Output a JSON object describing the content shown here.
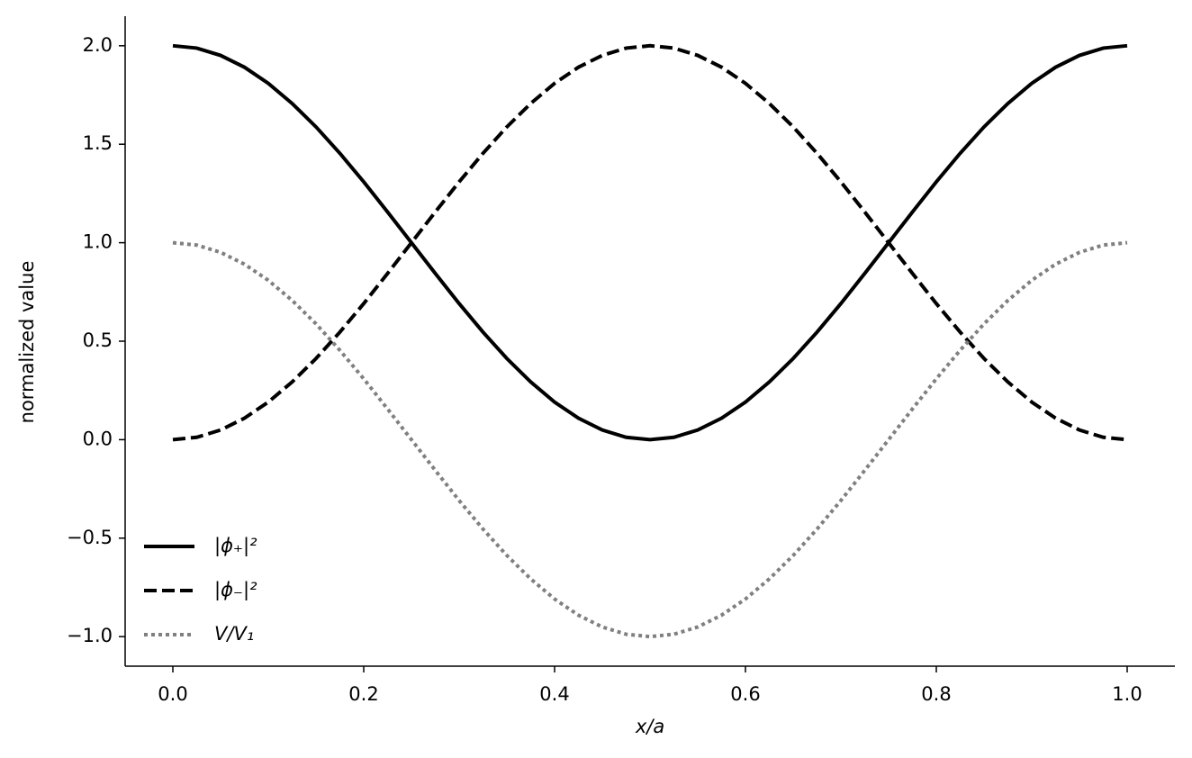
{
  "chart_data": {
    "type": "line",
    "xlabel": "x/a",
    "ylabel": "normalized value",
    "x": [
      0,
      0.025,
      0.05,
      0.075,
      0.1,
      0.125,
      0.15,
      0.175,
      0.2,
      0.225,
      0.25,
      0.275,
      0.3,
      0.325,
      0.35,
      0.375,
      0.4,
      0.425,
      0.45,
      0.475,
      0.5,
      0.525,
      0.55,
      0.575,
      0.6,
      0.625,
      0.65,
      0.675,
      0.7,
      0.725,
      0.75,
      0.775,
      0.8,
      0.825,
      0.85,
      0.875,
      0.9,
      0.925,
      0.95,
      0.975,
      1
    ],
    "series": [
      {
        "name": "|ϕ₊|²",
        "color": "#000000",
        "linestyle": "solid",
        "values": [
          2,
          1.988,
          1.951,
          1.891,
          1.809,
          1.707,
          1.588,
          1.454,
          1.309,
          1.156,
          1,
          0.844,
          0.691,
          0.546,
          0.412,
          0.293,
          0.191,
          0.109,
          0.049,
          0.012,
          0,
          0.012,
          0.049,
          0.109,
          0.191,
          0.293,
          0.412,
          0.546,
          0.691,
          0.844,
          1,
          1.156,
          1.309,
          1.454,
          1.588,
          1.707,
          1.809,
          1.891,
          1.951,
          1.988,
          2
        ]
      },
      {
        "name": "|ϕ₋|²",
        "color": "#000000",
        "linestyle": "dashed",
        "values": [
          0,
          0.012,
          0.049,
          0.109,
          0.191,
          0.293,
          0.412,
          0.546,
          0.691,
          0.844,
          1,
          1.156,
          1.309,
          1.454,
          1.588,
          1.707,
          1.809,
          1.891,
          1.951,
          1.988,
          2,
          1.988,
          1.951,
          1.891,
          1.809,
          1.707,
          1.588,
          1.454,
          1.309,
          1.156,
          1,
          0.844,
          0.691,
          0.546,
          0.412,
          0.293,
          0.191,
          0.109,
          0.049,
          0.012,
          0
        ]
      },
      {
        "name": "V/V₁",
        "color": "#808080",
        "linestyle": "dotted",
        "values": [
          1,
          0.988,
          0.951,
          0.891,
          0.809,
          0.707,
          0.588,
          0.454,
          0.309,
          0.156,
          0,
          -0.156,
          -0.309,
          -0.454,
          -0.588,
          -0.707,
          -0.809,
          -0.891,
          -0.951,
          -0.988,
          -1,
          -0.988,
          -0.951,
          -0.891,
          -0.809,
          -0.707,
          -0.588,
          -0.454,
          -0.309,
          -0.156,
          0,
          0.156,
          0.309,
          0.454,
          0.588,
          0.707,
          0.809,
          0.891,
          0.951,
          0.988,
          1
        ]
      }
    ],
    "xlim": [
      -0.05,
      1.05
    ],
    "ylim": [
      -1.15,
      2.15
    ],
    "xticks": [
      {
        "value": 0,
        "label": "0.0"
      },
      {
        "value": 0.2,
        "label": "0.2"
      },
      {
        "value": 0.4,
        "label": "0.4"
      },
      {
        "value": 0.6,
        "label": "0.6"
      },
      {
        "value": 0.8,
        "label": "0.8"
      },
      {
        "value": 1,
        "label": "1.0"
      }
    ],
    "yticks": [
      {
        "value": -1,
        "label": "−1.0"
      },
      {
        "value": -0.5,
        "label": "−0.5"
      },
      {
        "value": 0,
        "label": "0.0"
      },
      {
        "value": 0.5,
        "label": "0.5"
      },
      {
        "value": 1,
        "label": "1.0"
      },
      {
        "value": 1.5,
        "label": "1.5"
      },
      {
        "value": 2,
        "label": "2.0"
      }
    ],
    "grid": false,
    "legend": "lower left"
  }
}
